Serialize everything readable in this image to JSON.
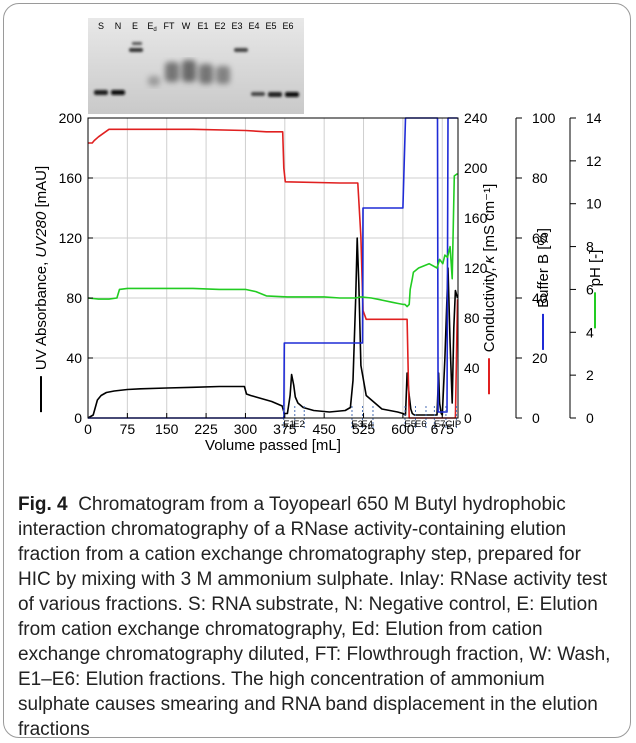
{
  "figure": {
    "caption_label": "Fig. 4",
    "caption_text": "Chromatogram from a Toyopearl 650 M Butyl hydrophobic interaction chromatography of a RNase activity-containing elution fraction from a cation exchange chromatography step, prepared for HIC by mixing with 3 M ammonium sulphate. Inlay: RNase activity test of various fractions. S: RNA substrate, N: Negative control, E: Elution from cation exchange chromatography, Ed: Elution from cation exchange chromatography diluted, FT: Flowthrough fraction, W: Wash, E1–E6: Elution fractions. The high concentration of ammonium sulphate causes smearing and RNA band displacement in the elution fractions"
  },
  "gel": {
    "lanes": [
      "S",
      "N",
      "E",
      "Ed",
      "FT",
      "W",
      "E1",
      "E2",
      "E3",
      "E4",
      "E5",
      "E6"
    ]
  },
  "chart_data": {
    "type": "line",
    "xlabel": "Volume passed [mL]",
    "x_ticks": [
      0,
      75,
      150,
      225,
      300,
      375,
      450,
      525,
      600,
      675
    ],
    "xlim": [
      0,
      705
    ],
    "fraction_labels": [
      {
        "label": "E1",
        "x": 383
      },
      {
        "label": "E2",
        "x": 402
      },
      {
        "label": "E3",
        "x": 513
      },
      {
        "label": "E4",
        "x": 532
      },
      {
        "label": "E5",
        "x": 614
      },
      {
        "label": "E6",
        "x": 634
      },
      {
        "label": "E7",
        "x": 670
      },
      {
        "label": "CIP",
        "x": 696
      }
    ],
    "fraction_markers": [
      373,
      394,
      412,
      503,
      523,
      543,
      604,
      624,
      644,
      660,
      682,
      702
    ],
    "axes": [
      {
        "label": "UV Absorbance, UV280 [mAU]",
        "label_main": "UV Absorbance, ",
        "label_italic": "UV280",
        "label_unit": " [mAU]",
        "ylim": [
          0,
          200
        ],
        "ticks": [
          0,
          40,
          80,
          120,
          160,
          200
        ],
        "color": "#000000",
        "side": "left"
      },
      {
        "label": "Conductivity, κ [mS cm⁻¹]",
        "label_main": "Conductivity, ",
        "label_italic": "κ",
        "label_unit": " [mS cm⁻¹]",
        "ylim": [
          0,
          240
        ],
        "ticks": [
          0,
          40,
          80,
          120,
          160,
          200,
          240
        ],
        "color": "#e02020",
        "side": "right"
      },
      {
        "label": "Buffer B [%]",
        "ylim": [
          0,
          100
        ],
        "ticks": [
          0,
          20,
          40,
          60,
          80,
          100
        ],
        "color": "#1f2bd6",
        "side": "right"
      },
      {
        "label": "pH [-]",
        "ylim": [
          0,
          14
        ],
        "ticks": [
          0,
          2,
          4,
          6,
          8,
          10,
          12,
          14
        ],
        "color": "#22cc22",
        "side": "right"
      }
    ],
    "series": [
      {
        "axis": 0,
        "color": "#000000",
        "x": [
          0,
          10,
          18,
          25,
          35,
          50,
          75,
          100,
          150,
          200,
          250,
          298,
          302,
          310,
          330,
          350,
          370,
          374,
          380,
          385,
          388,
          392,
          395,
          400,
          410,
          430,
          460,
          490,
          500,
          505,
          510,
          513,
          516,
          520,
          530,
          560,
          590,
          600,
          605,
          608,
          612,
          615,
          618,
          622,
          630,
          650,
          665,
          668,
          670,
          673,
          675,
          680,
          686,
          690,
          694,
          697,
          700,
          704
        ],
        "y": [
          0,
          2,
          12,
          15,
          17,
          18,
          19,
          19.5,
          20,
          20.5,
          21,
          21,
          16,
          15,
          13,
          11,
          8,
          3,
          3,
          15,
          29,
          22,
          14,
          10,
          7,
          5,
          4,
          5,
          7,
          25,
          80,
          120,
          90,
          35,
          15,
          6,
          4,
          3,
          2,
          30,
          15,
          6,
          3,
          2,
          2,
          2,
          2,
          30,
          10,
          3,
          2,
          40,
          100,
          50,
          10,
          60,
          85,
          80
        ]
      },
      {
        "axis": 1,
        "color": "#e02020",
        "x": [
          0,
          8,
          12,
          20,
          40,
          60,
          100,
          200,
          300,
          340,
          371,
          373,
          376,
          480,
          500,
          505,
          510,
          514,
          520,
          524,
          530,
          600,
          604,
          608,
          612,
          640,
          664,
          676,
          682,
          688,
          694,
          700,
          704
        ],
        "y": [
          220,
          220,
          222,
          225,
          231,
          231,
          231,
          231,
          230,
          229,
          229,
          200,
          189,
          188,
          188,
          188,
          188,
          188,
          145,
          86,
          79,
          79,
          79,
          79,
          0,
          0,
          0,
          0,
          0,
          0,
          0,
          0,
          95
        ],
        "note_style": "step"
      },
      {
        "axis": 2,
        "color": "#1f2bd6",
        "x": [
          0,
          373,
          374,
          380,
          480,
          482,
          487,
          523,
          524,
          535,
          600,
          605,
          610,
          640,
          650,
          666,
          667,
          668,
          671,
          672,
          684,
          686,
          700,
          704
        ],
        "y": [
          0,
          0,
          25,
          25,
          25,
          25,
          25,
          25,
          70,
          70,
          70,
          100,
          100,
          100,
          100,
          100,
          2,
          2,
          2,
          2,
          2,
          100,
          100,
          100
        ],
        "note_style": "step"
      },
      {
        "axis": 3,
        "color": "#22cc22",
        "x": [
          0,
          20,
          40,
          55,
          60,
          75,
          100,
          150,
          200,
          250,
          300,
          320,
          340,
          380,
          420,
          450,
          480,
          510,
          520,
          540,
          560,
          580,
          590,
          600,
          604,
          608,
          612,
          614,
          618,
          620,
          630,
          650,
          665,
          670,
          676,
          680,
          685,
          690,
          694,
          698,
          704
        ],
        "y": [
          5.6,
          5.55,
          5.55,
          5.6,
          6.0,
          6.05,
          6.05,
          6.05,
          6.05,
          6.0,
          6.0,
          5.9,
          5.7,
          5.65,
          5.65,
          5.65,
          5.6,
          5.6,
          5.65,
          5.6,
          5.5,
          5.4,
          5.35,
          5.3,
          5.3,
          5.2,
          5.3,
          6.0,
          6.5,
          6.8,
          7.0,
          7.2,
          7.0,
          7.4,
          7.2,
          7.6,
          7.5,
          8.0,
          6.5,
          11.3,
          11.4
        ]
      }
    ]
  }
}
